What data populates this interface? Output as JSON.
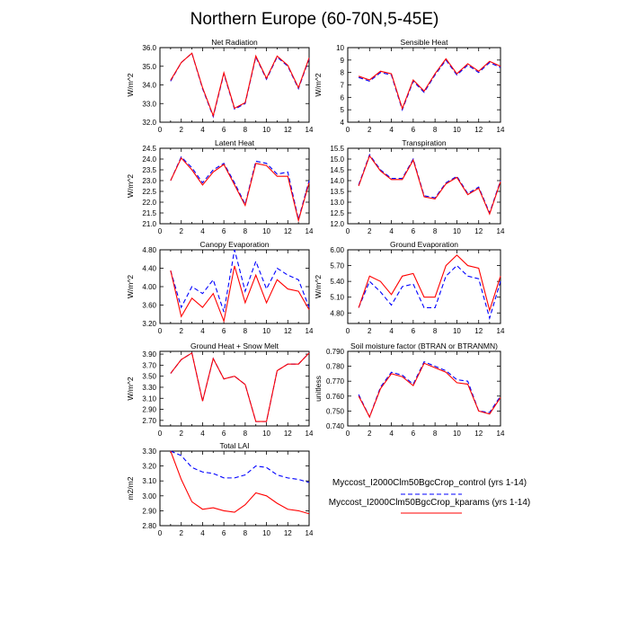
{
  "title": "Northern Europe (60-70N,5-45E)",
  "legend": {
    "placement": "bottom-right",
    "entries": [
      {
        "label": "Myccost_I2000Clm50BgcCrop_control (yrs 1-14)",
        "color": "#0000ff",
        "dash": "dashed"
      },
      {
        "label": "Myccost_I2000Clm50BgcCrop_kparams (yrs 1-14)",
        "color": "#ff0000",
        "dash": "solid"
      }
    ]
  },
  "chart_data": [
    {
      "type": "line",
      "title": "Net Radiation",
      "xlabel": "",
      "ylabel": "W/m^2",
      "x": [
        1,
        2,
        3,
        4,
        5,
        6,
        7,
        8,
        9,
        10,
        11,
        12,
        13,
        14
      ],
      "xlim": [
        0,
        14
      ],
      "xticks": [
        0,
        2,
        4,
        6,
        8,
        10,
        12,
        14
      ],
      "ylim": [
        32.0,
        36.0
      ],
      "yticks": [
        "32.0",
        "33.0",
        "34.0",
        "35.0",
        "36.0"
      ],
      "series": [
        {
          "values": [
            34.2,
            35.2,
            35.7,
            33.8,
            32.3,
            34.6,
            32.7,
            33.0,
            35.5,
            34.3,
            35.5,
            35.0,
            33.8,
            35.4
          ]
        },
        {
          "values": [
            34.25,
            35.2,
            35.7,
            33.85,
            32.35,
            34.65,
            32.75,
            33.05,
            35.55,
            34.35,
            35.55,
            35.05,
            33.85,
            35.45
          ]
        }
      ]
    },
    {
      "type": "line",
      "title": "Sensible Heat",
      "xlabel": "",
      "ylabel": "W/m^2",
      "x": [
        1,
        2,
        3,
        4,
        5,
        6,
        7,
        8,
        9,
        10,
        11,
        12,
        13,
        14
      ],
      "xlim": [
        0,
        14
      ],
      "xticks": [
        0,
        2,
        4,
        6,
        8,
        10,
        12,
        14
      ],
      "ylim": [
        4,
        10
      ],
      "yticks": [
        "4",
        "5",
        "6",
        "7",
        "8",
        "9",
        "10"
      ],
      "series": [
        {
          "values": [
            7.6,
            7.3,
            8.0,
            7.8,
            5.0,
            7.3,
            6.4,
            7.8,
            9.0,
            7.8,
            8.6,
            8.0,
            8.8,
            8.4
          ]
        },
        {
          "values": [
            7.7,
            7.4,
            8.1,
            7.9,
            5.1,
            7.4,
            6.5,
            7.9,
            9.1,
            7.9,
            8.7,
            8.1,
            8.9,
            8.5
          ]
        }
      ]
    },
    {
      "type": "line",
      "title": "Latent Heat",
      "xlabel": "",
      "ylabel": "W/m^2",
      "x": [
        1,
        2,
        3,
        4,
        5,
        6,
        7,
        8,
        9,
        10,
        11,
        12,
        13,
        14
      ],
      "xlim": [
        0,
        14
      ],
      "xticks": [
        0,
        2,
        4,
        6,
        8,
        10,
        12,
        14
      ],
      "ylim": [
        21.0,
        24.5
      ],
      "yticks": [
        "21.0",
        "21.5",
        "22.0",
        "22.5",
        "23.0",
        "23.5",
        "24.0",
        "24.5"
      ],
      "series": [
        {
          "values": [
            23.0,
            24.1,
            23.6,
            22.9,
            23.5,
            23.8,
            22.9,
            21.9,
            23.9,
            23.8,
            23.3,
            23.4,
            21.2,
            23.0
          ]
        },
        {
          "values": [
            23.0,
            24.05,
            23.5,
            22.8,
            23.4,
            23.75,
            22.8,
            21.85,
            23.8,
            23.7,
            23.2,
            23.2,
            21.15,
            22.9
          ]
        }
      ]
    },
    {
      "type": "line",
      "title": "Transpiration",
      "xlabel": "",
      "ylabel": "",
      "x": [
        1,
        2,
        3,
        4,
        5,
        6,
        7,
        8,
        9,
        10,
        11,
        12,
        13,
        14
      ],
      "xlim": [
        0,
        14
      ],
      "xticks": [
        0,
        2,
        4,
        6,
        8,
        10,
        12,
        14
      ],
      "ylim": [
        12.0,
        15.5
      ],
      "yticks": [
        "12.0",
        "12.5",
        "13.0",
        "13.5",
        "14.0",
        "14.5",
        "15.0",
        "15.5"
      ],
      "series": [
        {
          "values": [
            13.8,
            15.2,
            14.5,
            14.1,
            14.1,
            15.0,
            13.3,
            13.2,
            13.9,
            14.2,
            13.4,
            13.7,
            12.5,
            14.0
          ]
        },
        {
          "values": [
            13.75,
            15.15,
            14.45,
            14.05,
            14.05,
            14.95,
            13.25,
            13.15,
            13.85,
            14.15,
            13.35,
            13.65,
            12.45,
            13.95
          ]
        }
      ]
    },
    {
      "type": "line",
      "title": "Canopy Evaporation",
      "xlabel": "",
      "ylabel": "W/m^2",
      "x": [
        1,
        2,
        3,
        4,
        5,
        6,
        7,
        8,
        9,
        10,
        11,
        12,
        13,
        14
      ],
      "xlim": [
        0,
        14
      ],
      "xticks": [
        0,
        2,
        4,
        6,
        8,
        10,
        12,
        14
      ],
      "ylim": [
        3.2,
        4.8
      ],
      "yticks": [
        "3.20",
        "3.60",
        "4.00",
        "4.40",
        "4.80"
      ],
      "series": [
        {
          "values": [
            4.35,
            3.55,
            4.0,
            3.85,
            4.15,
            3.45,
            4.8,
            3.9,
            4.55,
            3.95,
            4.4,
            4.25,
            4.15,
            3.55
          ]
        },
        {
          "values": [
            4.35,
            3.35,
            3.75,
            3.55,
            3.85,
            3.25,
            4.45,
            3.65,
            4.25,
            3.65,
            4.15,
            3.95,
            3.9,
            3.5
          ]
        }
      ]
    },
    {
      "type": "line",
      "title": "Ground Evaporation",
      "xlabel": "",
      "ylabel": "W/m^2",
      "x": [
        1,
        2,
        3,
        4,
        5,
        6,
        7,
        8,
        9,
        10,
        11,
        12,
        13,
        14
      ],
      "xlim": [
        0,
        14
      ],
      "xticks": [
        0,
        2,
        4,
        6,
        8,
        10,
        12,
        14
      ],
      "ylim": [
        4.6,
        6.0
      ],
      "yticks": [
        "4.80",
        "5.10",
        "5.40",
        "5.70",
        "6.00"
      ],
      "series": [
        {
          "values": [
            4.9,
            5.4,
            5.2,
            4.95,
            5.3,
            5.35,
            4.9,
            4.9,
            5.5,
            5.7,
            5.5,
            5.45,
            4.7,
            5.4
          ]
        },
        {
          "values": [
            4.9,
            5.5,
            5.4,
            5.15,
            5.5,
            5.55,
            5.1,
            5.1,
            5.7,
            5.9,
            5.7,
            5.65,
            4.85,
            5.5
          ]
        }
      ]
    },
    {
      "type": "line",
      "title": "Ground Heat + Snow Melt",
      "xlabel": "",
      "ylabel": "W/m^2",
      "x": [
        1,
        2,
        3,
        4,
        5,
        6,
        7,
        8,
        9,
        10,
        11,
        12,
        13,
        14
      ],
      "xlim": [
        0,
        14
      ],
      "xticks": [
        0,
        2,
        4,
        6,
        8,
        10,
        12,
        14
      ],
      "ylim": [
        2.6,
        3.95
      ],
      "yticks": [
        "2.70",
        "2.90",
        "3.10",
        "3.30",
        "3.50",
        "3.70",
        "3.90"
      ],
      "series": [
        {
          "values": [
            3.55,
            3.8,
            3.92,
            3.05,
            3.82,
            3.45,
            3.5,
            3.35,
            2.68,
            2.68,
            3.6,
            3.72,
            3.72,
            3.92
          ]
        },
        {
          "values": [
            3.55,
            3.8,
            3.92,
            3.05,
            3.82,
            3.45,
            3.5,
            3.35,
            2.68,
            2.68,
            3.6,
            3.72,
            3.72,
            3.92
          ]
        }
      ]
    },
    {
      "type": "line",
      "title": "Soil moisture factor (BTRAN or BTRANMN)",
      "xlabel": "",
      "ylabel": "unitless",
      "x": [
        1,
        2,
        3,
        4,
        5,
        6,
        7,
        8,
        9,
        10,
        11,
        12,
        13,
        14
      ],
      "xlim": [
        0,
        14
      ],
      "xticks": [
        0,
        2,
        4,
        6,
        8,
        10,
        12,
        14
      ],
      "ylim": [
        0.74,
        0.79
      ],
      "yticks": [
        "0.740",
        "0.750",
        "0.760",
        "0.770",
        "0.780",
        "0.790"
      ],
      "series": [
        {
          "values": [
            0.761,
            0.746,
            0.766,
            0.776,
            0.774,
            0.768,
            0.783,
            0.78,
            0.777,
            0.771,
            0.77,
            0.75,
            0.749,
            0.76
          ]
        },
        {
          "values": [
            0.76,
            0.746,
            0.765,
            0.775,
            0.773,
            0.767,
            0.782,
            0.779,
            0.776,
            0.769,
            0.768,
            0.75,
            0.748,
            0.759
          ]
        }
      ]
    },
    {
      "type": "line",
      "title": "Total LAI",
      "xlabel": "",
      "ylabel": "m2/m2",
      "x": [
        1,
        2,
        3,
        4,
        5,
        6,
        7,
        8,
        9,
        10,
        11,
        12,
        13,
        14
      ],
      "xlim": [
        0,
        14
      ],
      "xticks": [
        0,
        2,
        4,
        6,
        8,
        10,
        12,
        14
      ],
      "ylim": [
        2.8,
        3.3
      ],
      "yticks": [
        "2.80",
        "2.90",
        "3.00",
        "3.10",
        "3.20",
        "3.30"
      ],
      "series": [
        {
          "values": [
            3.3,
            3.27,
            3.19,
            3.16,
            3.15,
            3.12,
            3.12,
            3.14,
            3.2,
            3.19,
            3.14,
            3.12,
            3.11,
            3.09
          ]
        },
        {
          "values": [
            3.3,
            3.11,
            2.96,
            2.91,
            2.92,
            2.9,
            2.89,
            2.94,
            3.02,
            3.0,
            2.95,
            2.91,
            2.9,
            2.88
          ]
        }
      ]
    }
  ]
}
